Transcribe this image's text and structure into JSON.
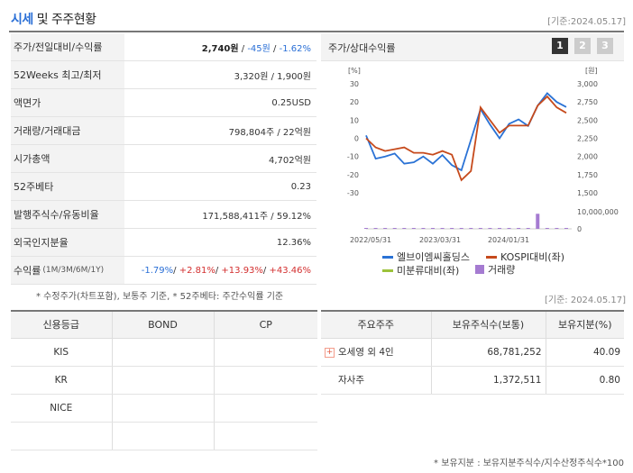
{
  "header": {
    "title_blue": "시세",
    "title_rest": " 및 주주현황",
    "date": "[기준:2024.05.17]"
  },
  "info": [
    {
      "label": "주가/전일대비/수익률",
      "price": "2,740원",
      "sep1": " / ",
      "change": "-45원",
      "sep2": " / ",
      "rate": "-1.62%"
    },
    {
      "label": "52Weeks 최고/최저",
      "value": "3,320원 / 1,900원"
    },
    {
      "label": "액면가",
      "value": "0.25USD"
    },
    {
      "label": "거래량/거래대금",
      "value": "798,804주 / 22억원"
    },
    {
      "label": "시가총액",
      "value": "4,702억원"
    },
    {
      "label": "52주베타",
      "value": "0.23"
    },
    {
      "label": "발행주식수/유동비율",
      "value": "171,588,411주 / 59.12%"
    },
    {
      "label": "외국인지분율",
      "value": "12.36%"
    },
    {
      "label": "수익률",
      "label_small": "(1M/3M/6M/1Y)",
      "r1": "-1.79%",
      "r2": "+2.81%",
      "r3": "+13.93%",
      "r4": "+43.46%",
      "sep": "/ "
    }
  ],
  "note_left": "* 수정주가(차트포함), 보통주 기준, * 52주베타: 주간수익률 기준",
  "chart": {
    "title": "주가/상대수익률",
    "pages": [
      "1",
      "2",
      "3"
    ],
    "legend": [
      {
        "label": "엘브이엠씨홀딩스",
        "color": "#2a72d5",
        "kind": "line"
      },
      {
        "label": "KOSPI대비(좌)",
        "color": "#c64a1c",
        "kind": "line"
      },
      {
        "label": "미분류대비(좌)",
        "color": "#9cc23a",
        "kind": "line"
      },
      {
        "label": "거래량",
        "color": "#a57bd1",
        "kind": "box"
      }
    ]
  },
  "chart_data": {
    "type": "line",
    "left_axis": {
      "unit": "[%]",
      "ticks": [
        "30",
        "20",
        "10",
        "0",
        "-10",
        "-20",
        "-30"
      ],
      "range": [
        -30,
        30
      ]
    },
    "right_axis": {
      "unit": "[원]",
      "ticks": [
        "3,000",
        "2,750",
        "2,500",
        "2,250",
        "2,000",
        "1,750",
        "1,500"
      ],
      "range": [
        1500,
        3000
      ]
    },
    "volume_axis": {
      "ticks": [
        "10,000,000",
        "0"
      ],
      "range": [
        0,
        10000000
      ]
    },
    "x_ticks": [
      "2022/05/31",
      "2023/03/31",
      "2024/01/31"
    ],
    "series": [
      {
        "name": "엘브이엠씨홀딩스",
        "color": "#2a72d5",
        "axis": "right",
        "values": [
          2290,
          1970,
          2000,
          2040,
          1900,
          1920,
          2000,
          1900,
          2020,
          1880,
          1810,
          2230,
          2650,
          2440,
          2250,
          2450,
          2510,
          2420,
          2700,
          2870,
          2750,
          2680
        ]
      },
      {
        "name": "KOSPI대비(좌)",
        "color": "#c64a1c",
        "axis": "left",
        "values": [
          0,
          -5,
          -7,
          -6,
          -5,
          -8,
          -8,
          -9,
          -7,
          -9,
          -23,
          -18,
          17,
          10,
          3,
          7,
          7,
          7,
          18,
          23,
          17,
          14
        ]
      },
      {
        "name": "거래량",
        "color": "#a57bd1",
        "axis": "volume",
        "values": [
          80000,
          50000,
          60000,
          40000,
          50000,
          60000,
          70000,
          150000,
          200000,
          250000,
          300000,
          350000,
          300000,
          250000,
          200000,
          150000,
          100000,
          100000,
          8800000,
          200000,
          100000,
          80000
        ]
      }
    ]
  },
  "date2": "[기준: 2024.05.17]",
  "credit": {
    "headers": [
      "신용등급",
      "BOND",
      "CP"
    ],
    "rows": [
      [
        "KIS",
        "",
        ""
      ],
      [
        "KR",
        "",
        ""
      ],
      [
        "NICE",
        "",
        ""
      ],
      [
        "",
        "",
        ""
      ]
    ]
  },
  "holders": {
    "headers": [
      "주요주주",
      "보유주식수(보통)",
      "보유지분(%)"
    ],
    "rows": [
      {
        "name": "오세영 외 4인",
        "shares": "68,781,252",
        "pct": "40.09",
        "expand": "+"
      },
      {
        "name": "자사주",
        "shares": "1,372,511",
        "pct": "0.80"
      }
    ],
    "note": "* 보유지분 : 보유지분주식수/지수산정주식수*100"
  }
}
